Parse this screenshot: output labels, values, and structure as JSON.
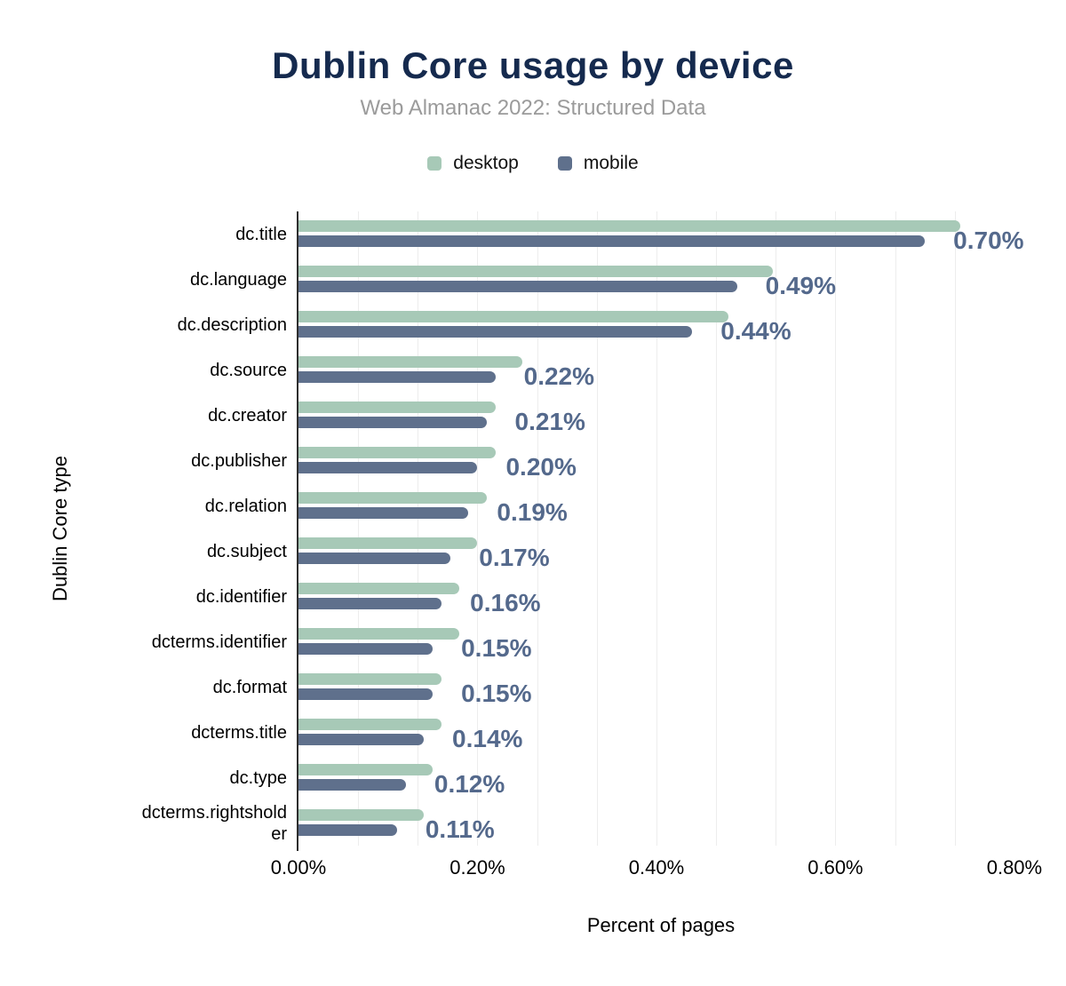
{
  "chart_data": {
    "type": "bar",
    "orientation": "horizontal",
    "title": "Dublin Core usage by device",
    "subtitle": "Web Almanac 2022: Structured Data",
    "xlabel": "Percent of pages",
    "ylabel": "Dublin Core type",
    "categories": [
      "dc.title",
      "dc.language",
      "dc.description",
      "dc.source",
      "dc.creator",
      "dc.publisher",
      "dc.relation",
      "dc.subject",
      "dc.identifier",
      "dcterms.identifier",
      "dc.format",
      "dcterms.title",
      "dc.type",
      "dcterms.rightsholder"
    ],
    "series": [
      {
        "name": "desktop",
        "color": "#a7c9b7",
        "values": [
          0.74,
          0.53,
          0.48,
          0.25,
          0.22,
          0.22,
          0.21,
          0.2,
          0.18,
          0.18,
          0.16,
          0.16,
          0.15,
          0.14
        ]
      },
      {
        "name": "mobile",
        "color": "#5f708c",
        "values": [
          0.7,
          0.49,
          0.44,
          0.22,
          0.21,
          0.2,
          0.19,
          0.17,
          0.16,
          0.15,
          0.15,
          0.14,
          0.12,
          0.11
        ]
      }
    ],
    "data_labels": [
      "0.70%",
      "0.49%",
      "0.44%",
      "0.22%",
      "0.21%",
      "0.20%",
      "0.19%",
      "0.17%",
      "0.16%",
      "0.15%",
      "0.15%",
      "0.14%",
      "0.12%",
      "0.11%"
    ],
    "data_label_color": "#54698c",
    "x_ticks": [
      "0.00%",
      "0.20%",
      "0.40%",
      "0.60%",
      "0.80%"
    ],
    "x_tick_values": [
      0,
      0.2,
      0.4,
      0.6,
      0.8
    ],
    "xlim": [
      0,
      0.81
    ],
    "grid": "vertical-minor",
    "minor_grid_step": 0.066667,
    "minor_grid_max": 0.8,
    "grid_color": "#ededed",
    "axis_line_color": "#2e2e2e",
    "legend_position": "top-center"
  }
}
